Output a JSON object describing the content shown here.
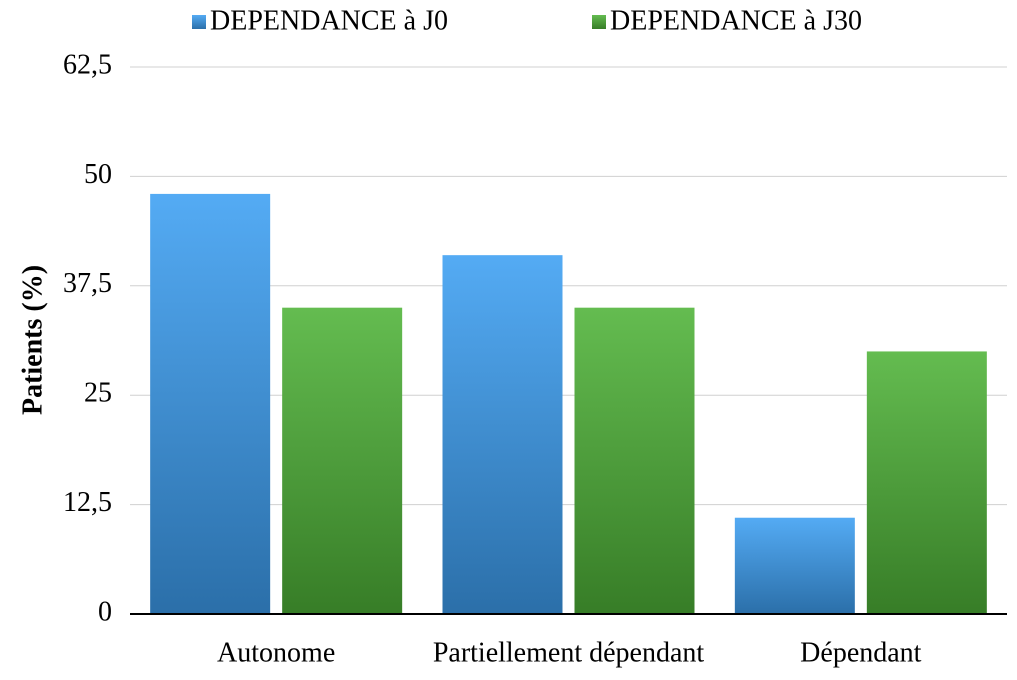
{
  "chart_data": {
    "type": "bar",
    "categories": [
      "Autonome",
      "Partiellement dépendant",
      "Dépendant"
    ],
    "series": [
      {
        "name": "DEPENDANCE à J0",
        "color": "#3d9ff2",
        "values": [
          48,
          41,
          11
        ]
      },
      {
        "name": "DEPENDANCE à J30",
        "color": "#4fb338",
        "values": [
          35,
          35,
          30
        ]
      }
    ],
    "y_label": "Patients (%)",
    "ylim": [
      0,
      62.5
    ],
    "yticks": [
      0,
      {
        "value": 12.5,
        "label": "12,5"
      },
      25,
      {
        "value": 37.5,
        "label": "37,5"
      },
      50,
      {
        "value": 62.5,
        "label": "62,5"
      }
    ],
    "grid": true,
    "legend": "top"
  }
}
